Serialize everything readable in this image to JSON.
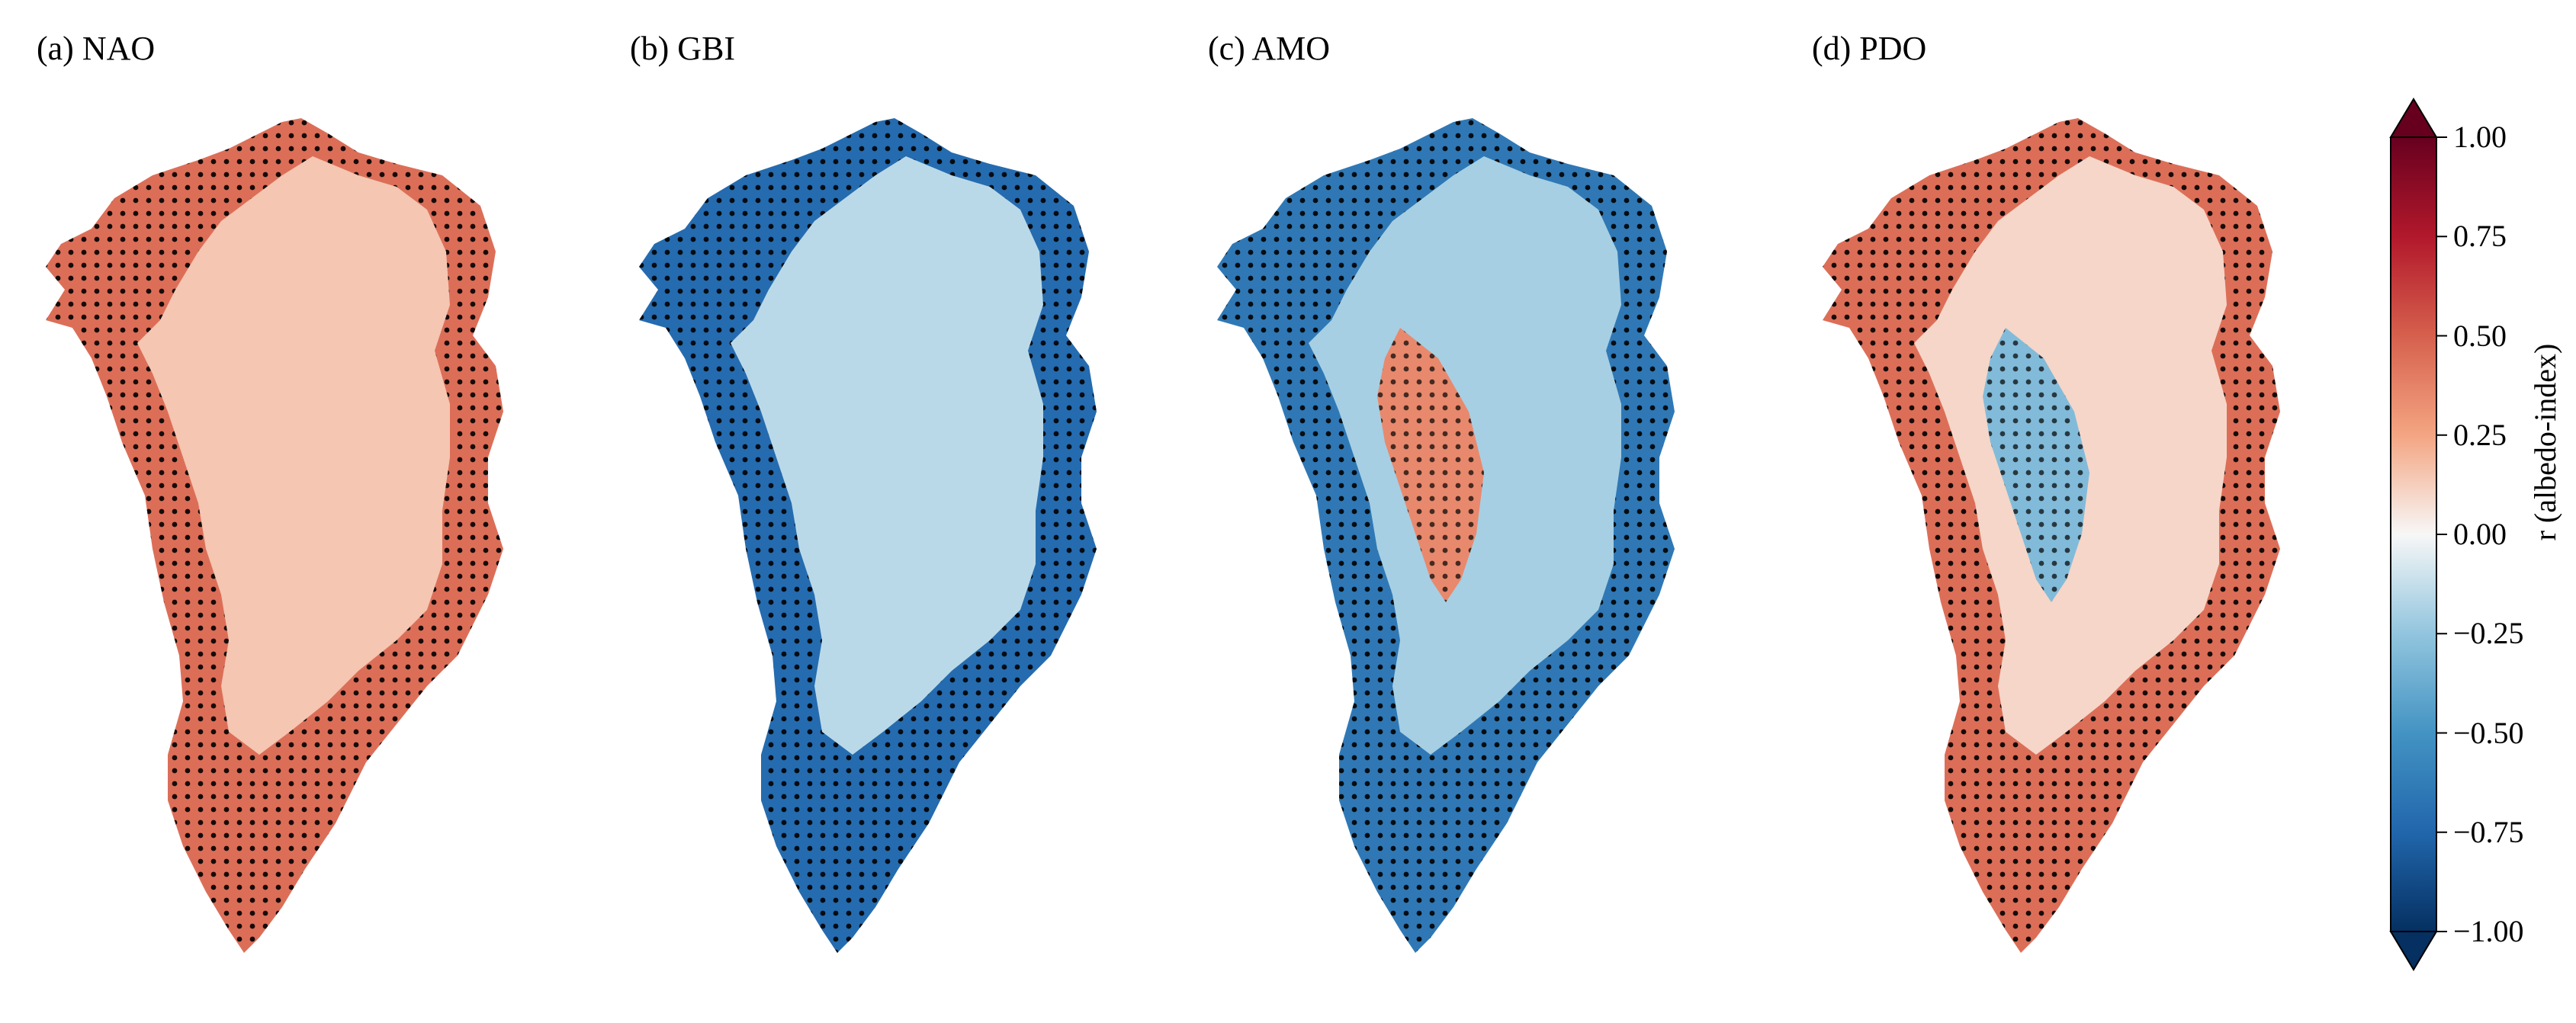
{
  "chart_data": {
    "type": "heatmap",
    "description": "Four map panels of correlation between albedo and climate indices over Greenland; stippling marks significance",
    "panels": [
      {
        "title": "(a) NAO",
        "index": "NAO",
        "margin_r": 0.45,
        "interior_r": 0.15,
        "stippled_margin": true
      },
      {
        "title": "(b) GBI",
        "index": "GBI",
        "margin_r": -0.72,
        "interior_r": -0.15,
        "stippled_margin": true
      },
      {
        "title": "(c) AMO",
        "index": "AMO",
        "margin_r": -0.65,
        "interior_r": -0.2,
        "west_interior_r": 0.35,
        "stippled_margin": true
      },
      {
        "title": "(d) PDO",
        "index": "PDO",
        "margin_r": 0.45,
        "interior_r": 0.1,
        "west_interior_r": -0.3,
        "stippled_margin": true
      }
    ],
    "colorbar": {
      "label": "r (albedo-index)",
      "min": -1.0,
      "max": 1.0,
      "extend": "both",
      "colormap": "RdBu_r",
      "ticks": [
        "1.00",
        "0.75",
        "0.50",
        "0.25",
        "0.00",
        "−0.25",
        "−0.50",
        "−0.75",
        "−1.00"
      ],
      "tick_values": [
        1.0,
        0.75,
        0.5,
        0.25,
        0.0,
        -0.25,
        -0.5,
        -0.75,
        -1.0
      ]
    }
  }
}
